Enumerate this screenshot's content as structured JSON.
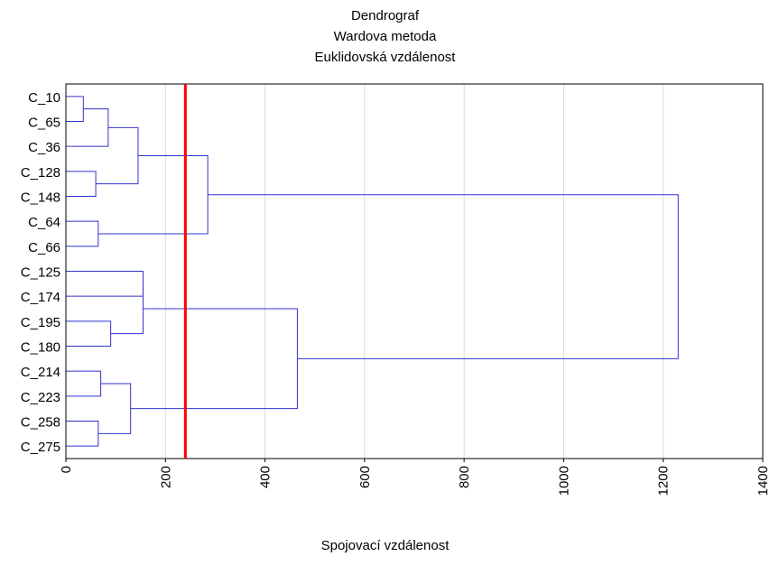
{
  "chart_data": {
    "type": "dendrogram",
    "title": [
      "Dendrograf",
      "Wardova metoda",
      "Euklidovská vzdálenost"
    ],
    "xlabel": "Spojovací vzdálenost",
    "xlim": [
      0,
      1400
    ],
    "xticks": [
      "0",
      "200",
      "400",
      "600",
      "800",
      "1000",
      "1200",
      "1400"
    ],
    "leaf_labels": [
      "C_10",
      "C_65",
      "C_36",
      "C_128",
      "C_148",
      "C_64",
      "C_66",
      "C_125",
      "C_174",
      "C_195",
      "C_180",
      "C_214",
      "C_223",
      "C_258",
      "C_275"
    ],
    "cut_line": 240,
    "grid": true,
    "colors": {
      "tree": "#3333cc",
      "cut_line": "#ff0000",
      "grid": "#d9d9d9",
      "axis": "#000000"
    },
    "merges": [
      {
        "name": "A1",
        "left": 0,
        "right": 1,
        "height": 35
      },
      {
        "name": "A",
        "left": "A1",
        "right": 2,
        "height": 85
      },
      {
        "name": "B",
        "left": 3,
        "right": 4,
        "height": 60
      },
      {
        "name": "AB",
        "left": "A",
        "right": "B",
        "height": 145
      },
      {
        "name": "C",
        "left": 5,
        "right": 6,
        "height": 65
      },
      {
        "name": "D",
        "left": "AB",
        "right": "C",
        "height": 285
      },
      {
        "name": "E",
        "left": 7,
        "right": 8,
        "height": 155
      },
      {
        "name": "F",
        "left": 9,
        "right": 10,
        "height": 90
      },
      {
        "name": "EF",
        "left": "E",
        "right": "F",
        "height": 155
      },
      {
        "name": "G",
        "left": 11,
        "right": 12,
        "height": 70
      },
      {
        "name": "H",
        "left": 13,
        "right": 14,
        "height": 65
      },
      {
        "name": "GH",
        "left": "G",
        "right": "H",
        "height": 130
      },
      {
        "name": "I",
        "left": "EF",
        "right": "GH",
        "height": 465
      },
      {
        "name": "ROOT",
        "left": "D",
        "right": "I",
        "height": 1230
      }
    ]
  }
}
